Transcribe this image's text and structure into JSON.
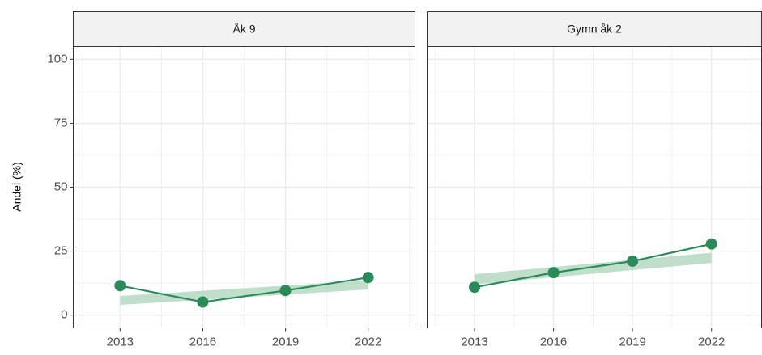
{
  "chart_data": [
    {
      "type": "line",
      "title": "Åk 9",
      "ylabel": "Andel (%)",
      "x": [
        2013,
        2016,
        2019,
        2022
      ],
      "values": [
        11.5,
        5.1,
        9.6,
        14.7
      ],
      "band_lower": [
        4,
        6,
        8,
        10
      ],
      "band_upper": [
        7.5,
        9.5,
        11.5,
        13.5
      ],
      "color": "#2b8a5a",
      "band_color": "#a9d4b8",
      "xlim": [
        2011.3,
        2023.7
      ],
      "xticks": [
        2013,
        2016,
        2019,
        2022
      ],
      "minor_xticks": [
        2011.5,
        2014.5,
        2017.5,
        2020.5,
        2023.5
      ],
      "ylim": [
        -5,
        105
      ],
      "yticks": [
        0,
        25,
        50,
        75,
        100
      ],
      "minor_yticks": [
        12.5,
        37.5,
        62.5,
        87.5
      ],
      "grid": true
    },
    {
      "type": "line",
      "title": "Gymn åk 2",
      "x": [
        2013,
        2016,
        2019,
        2022
      ],
      "values": [
        10.9,
        16.6,
        21.1,
        27.8
      ],
      "band_lower": [
        12,
        14.8,
        17.6,
        20.4
      ],
      "band_upper": [
        16,
        18.8,
        21.6,
        24.4
      ],
      "color": "#2b8a5a",
      "band_color": "#a9d4b8",
      "xlim": [
        2011.2,
        2023.9
      ],
      "xticks": [
        2013,
        2016,
        2019,
        2022
      ],
      "minor_xticks": [
        2011.5,
        2014.5,
        2017.5,
        2020.5,
        2023.5
      ],
      "ylim": [
        -5,
        105
      ],
      "yticks": [
        0,
        25,
        50,
        75,
        100
      ],
      "minor_yticks": [
        12.5,
        37.5,
        62.5,
        87.5
      ],
      "grid": true
    }
  ]
}
